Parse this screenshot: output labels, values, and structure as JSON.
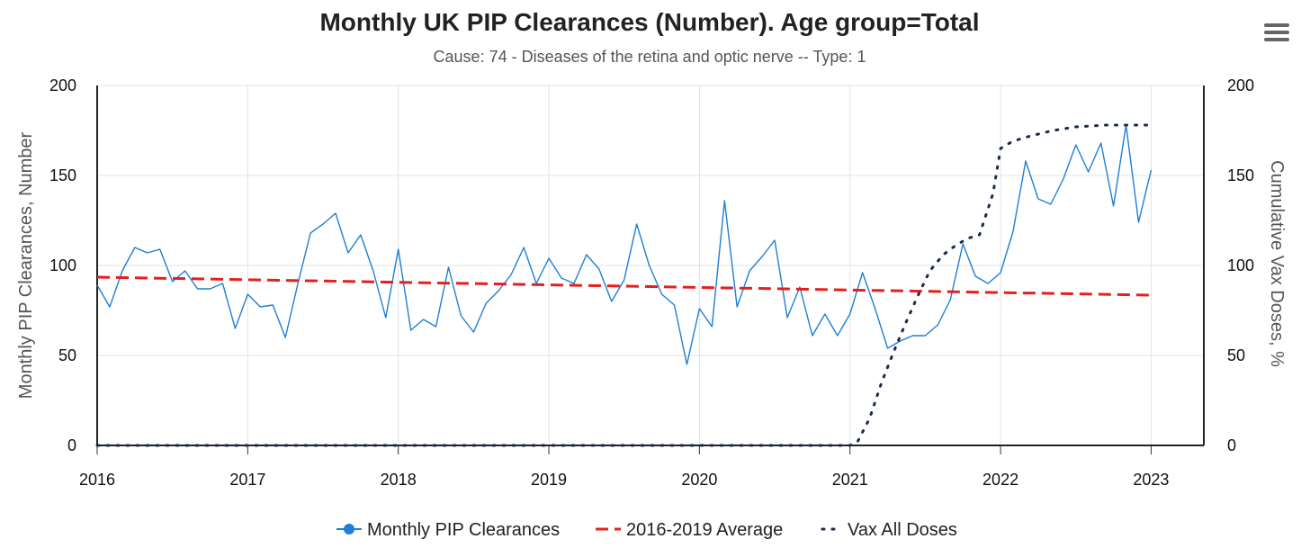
{
  "chart_data": {
    "type": "line",
    "title": "Monthly UK PIP Clearances (Number). Age group=Total",
    "subtitle": "Cause: 74 - Diseases of the retina and optic nerve -- Type: 1",
    "ylabel": "Monthly PIP Clearances, Number",
    "y2label": "Cumulative Vax Doses, %",
    "xlabel": "",
    "xlim": [
      2016,
      2023.35
    ],
    "ylim": [
      0,
      200
    ],
    "y2lim": [
      0,
      200
    ],
    "x_ticks": [
      "2016",
      "2017",
      "2018",
      "2019",
      "2020",
      "2021",
      "2022",
      "2023"
    ],
    "y_ticks": [
      "0",
      "50",
      "100",
      "150",
      "200"
    ],
    "y2_ticks": [
      "0",
      "50",
      "100",
      "150",
      "200"
    ],
    "grid": true,
    "legend_position": "bottom-center",
    "series": [
      {
        "name": "Monthly PIP Clearances",
        "axis": "left",
        "style": "solid-line-with-dot-marker",
        "color": "#1f7fd4",
        "values": [
          89,
          77,
          97,
          110,
          107,
          109,
          91,
          97,
          87,
          87,
          90,
          65,
          84,
          77,
          78,
          60,
          90,
          118,
          123,
          129,
          107,
          117,
          97,
          71,
          109,
          64,
          70,
          66,
          99,
          72,
          63,
          79,
          86,
          95,
          110,
          90,
          104,
          93,
          90,
          106,
          98,
          80,
          92,
          123,
          100,
          84,
          78,
          45,
          76,
          66,
          136,
          77,
          97,
          105,
          114,
          71,
          88,
          61,
          73,
          61,
          73,
          96,
          76,
          54,
          58,
          61,
          61,
          67,
          81,
          112,
          94,
          90,
          96,
          119,
          158,
          137,
          134,
          148,
          167,
          152,
          168,
          133,
          178,
          124,
          153
        ]
      },
      {
        "name": "2016-2019 Average",
        "axis": "left",
        "style": "dashed",
        "color": "#e5201c",
        "x": [
          2016,
          2023
        ],
        "values": [
          93.5,
          83.5
        ]
      },
      {
        "name": "Vax All Doses",
        "axis": "right",
        "style": "dotted",
        "color": "#1a2a4a",
        "x": [
          2016,
          2021,
          2021.05,
          2021.13,
          2021.21,
          2021.29,
          2021.37,
          2021.45,
          2021.53,
          2021.62,
          2021.7,
          2021.78,
          2021.86,
          2021.95,
          2022.0,
          2022.08,
          2022.2,
          2022.35,
          2022.5,
          2022.7,
          2022.9,
          2023.0
        ],
        "values": [
          0,
          0,
          2,
          15,
          35,
          52,
          68,
          83,
          97,
          106,
          111,
          115,
          117,
          140,
          165,
          169,
          172,
          175,
          177,
          178,
          178,
          178
        ]
      }
    ]
  },
  "menu_icon": "hamburger-menu-icon"
}
